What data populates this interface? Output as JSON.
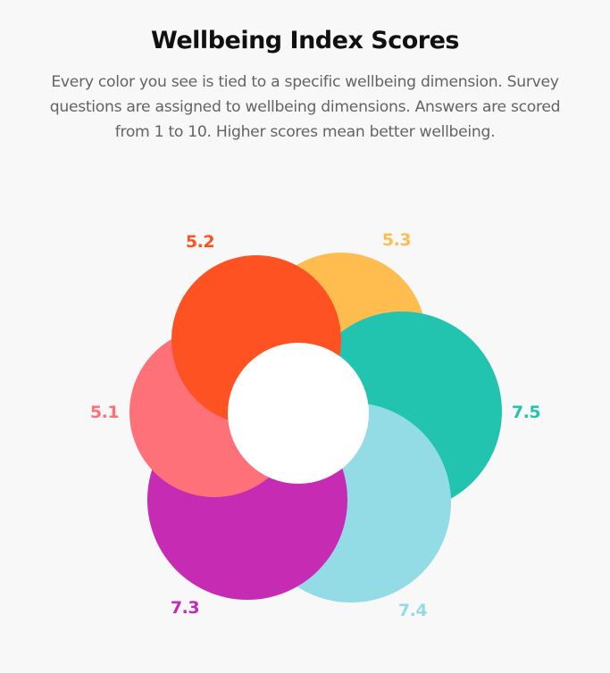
{
  "header": {
    "title": "Wellbeing Index Scores",
    "subtitle_lines": [
      "Every color you see is tied to a specific wellbeing dimension. Survey",
      "questions are assigned to wellbeing dimensions. Answers are scored",
      "from 1 to 10. Higher scores mean better wellbeing."
    ]
  },
  "colors": {
    "background": "#f8f8f8",
    "center": "#ffffff"
  },
  "chart_data": {
    "type": "radial-bubble",
    "title": "Wellbeing Index Scores",
    "subtitle": "Every color you see is tied to a specific wellbeing dimension. Survey questions are assigned to wellbeing dimensions. Answers are scored from 1 to 10. Higher scores mean better wellbeing.",
    "scale": [
      1,
      10
    ],
    "legend": "none",
    "grid": false,
    "series": [
      {
        "position": "top-right",
        "value": 5.3,
        "color": "#ffbd50",
        "cx": 382,
        "cy": 378,
        "r": 95,
        "label_x": 444,
        "label_y": 269
      },
      {
        "position": "right",
        "value": 7.5,
        "color": "#22c4b0",
        "cx": 450,
        "cy": 461,
        "r": 112,
        "label_x": 589,
        "label_y": 462
      },
      {
        "position": "bottom-right",
        "value": 7.4,
        "color": "#93dce6",
        "cx": 393,
        "cy": 563,
        "r": 112,
        "label_x": 462,
        "label_y": 684
      },
      {
        "position": "bottom-left",
        "value": 7.3,
        "color": "#c62bb4",
        "cx": 277,
        "cy": 560,
        "r": 112,
        "label_x": 207,
        "label_y": 681
      },
      {
        "position": "left",
        "value": 5.1,
        "color": "#ff7179",
        "cx": 240,
        "cy": 462,
        "r": 95,
        "label_x": 117,
        "label_y": 462
      },
      {
        "position": "top-left",
        "value": 5.2,
        "color": "#ff5222",
        "cx": 287,
        "cy": 381,
        "r": 95,
        "label_x": 224,
        "label_y": 271
      }
    ],
    "center_circle": {
      "cx": 334,
      "cy": 463,
      "r": 79,
      "color": "#ffffff"
    }
  }
}
